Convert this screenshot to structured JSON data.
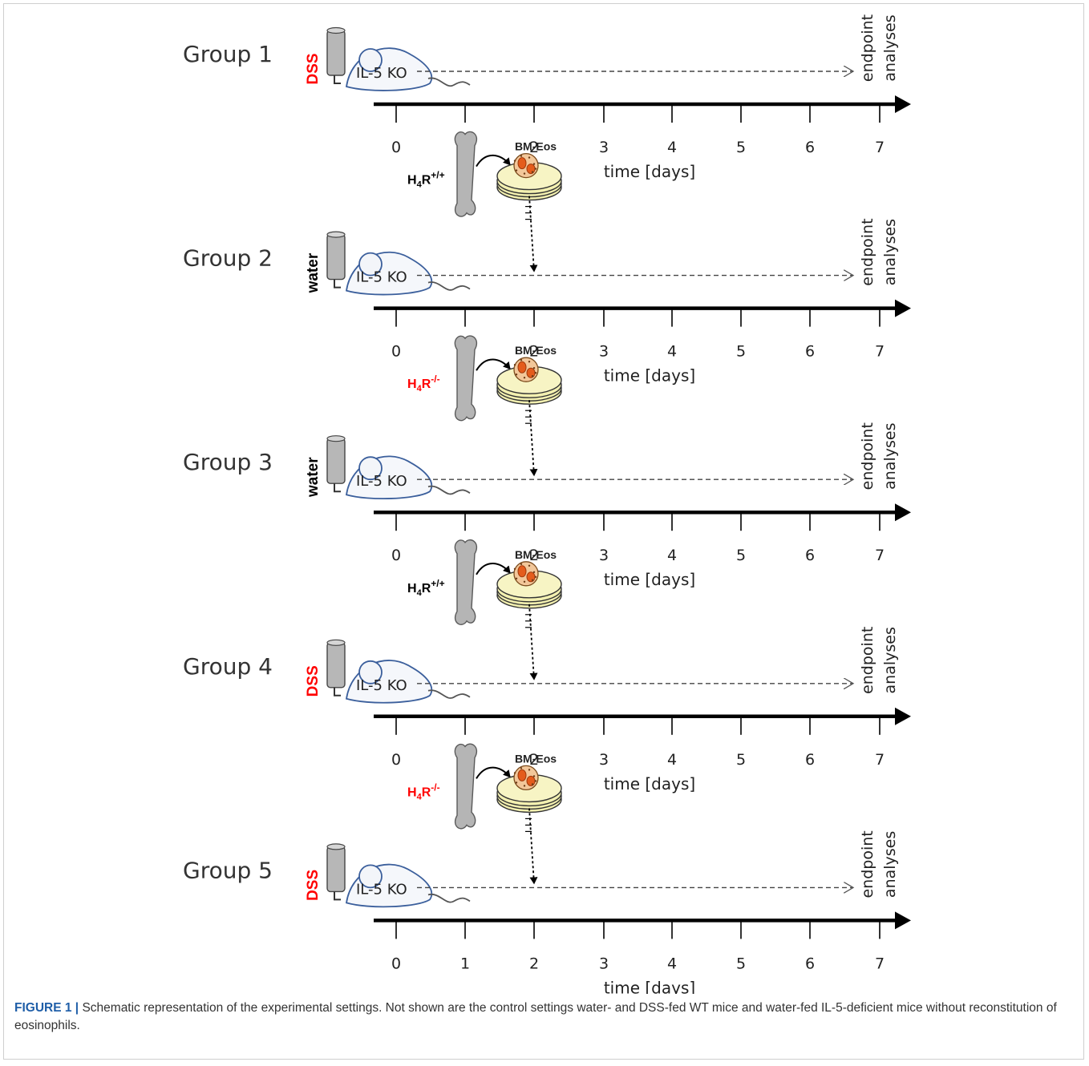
{
  "figure": {
    "groups": [
      {
        "label": "Group 1",
        "diet": "DSS",
        "diet_color": "#ff0000",
        "cells": null
      },
      {
        "label": "Group 2",
        "diet": "water",
        "diet_color": "#000000",
        "cells": {
          "genotype": "H4R",
          "superscript": "+/+",
          "color": "#000000",
          "product": "BM-Eos"
        }
      },
      {
        "label": "Group 3",
        "diet": "water",
        "diet_color": "#000000",
        "cells": {
          "genotype": "H4R",
          "superscript": "-/-",
          "color": "#ff0000",
          "product": "BM-Eos"
        }
      },
      {
        "label": "Group 4",
        "diet": "DSS",
        "diet_color": "#ff0000",
        "cells": {
          "genotype": "H4R",
          "superscript": "+/+",
          "color": "#000000",
          "product": "BM-Eos"
        }
      },
      {
        "label": "Group 5",
        "diet": "DSS",
        "diet_color": "#ff0000",
        "cells": {
          "genotype": "H4R",
          "superscript": "-/-",
          "color": "#ff0000",
          "product": "BM-Eos"
        }
      }
    ],
    "mouse_label": "IL-5 KO",
    "endpoint_label": [
      "endpoint",
      "analyses"
    ],
    "axis": {
      "ticks": [
        "0",
        "1",
        "2",
        "3",
        "4",
        "5",
        "6",
        "7"
      ],
      "label": "time [days]",
      "injection_day": 2
    }
  },
  "caption": {
    "label": "FIGURE 1 |",
    "text": " Schematic representation of the experimental settings. Not shown are the control settings water- and DSS-fed WT mice and water-fed IL-5-deficient mice without reconstitution of eosinophils."
  }
}
